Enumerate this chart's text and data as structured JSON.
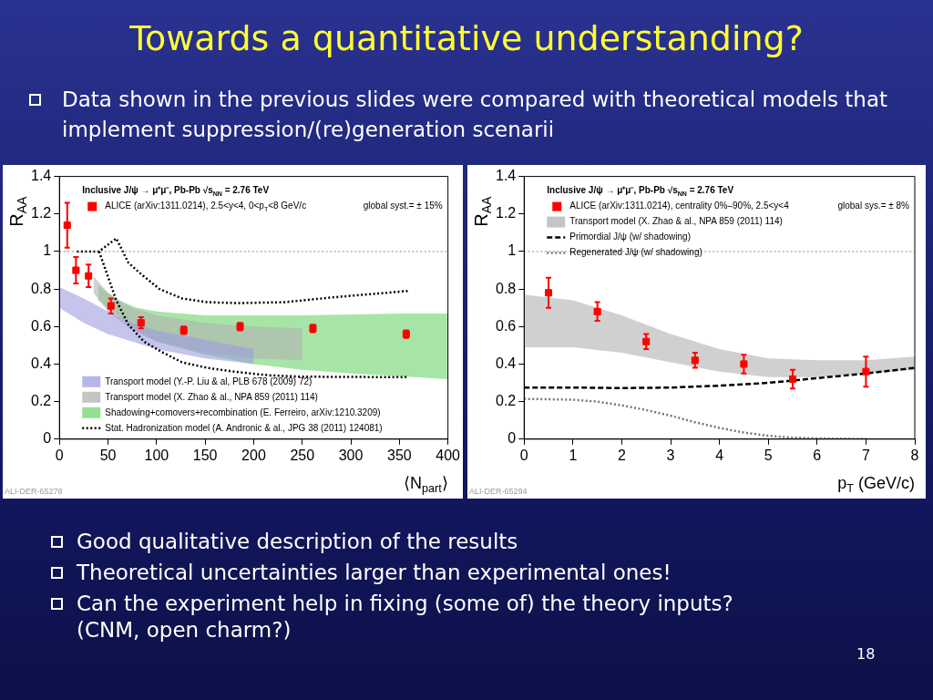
{
  "chart_data": [
    {
      "type": "other",
      "title": "Towards a quantitative understanding?",
      "annotations": [
        "Data shown in the previous slides were compared with theoretical models that implement suppression/(re)generation scenarii"
      ]
    },
    {
      "type": "scatter",
      "xlabel": "⟨N$_{part}$⟩",
      "ylabel": "R$_{AA}$",
      "xlim": [
        0,
        400
      ],
      "ylim": [
        0,
        1.4
      ],
      "xticks": [
        0,
        50,
        100,
        150,
        200,
        250,
        300,
        350,
        400
      ],
      "yticks": [
        0,
        0.2,
        0.4,
        0.6,
        0.8,
        1,
        1.2,
        1.4
      ],
      "legend": "bottom left",
      "annotations": [
        "Inclusive J/ψ → μ⁺μ⁻, Pb-Pb √s$_{NN}$ = 2.76 TeV",
        "global syst.= ± 15%",
        "ALI-DER-65278"
      ],
      "ref_lines": [
        {
          "axis": "y",
          "value": 1,
          "line_style": "dotted",
          "color": "#888888"
        }
      ],
      "series": [
        {
          "type": "line",
          "name": "Transport model (Y.-P. Liu & al, PLB 678 (2009) 72)",
          "color": "#9c9ce0",
          "x": [
            0,
            25,
            50,
            75,
            100,
            150,
            200
          ],
          "values": [
            null,
            null,
            null,
            null,
            null,
            null,
            null
          ],
          "lower": [
            0.7,
            0.62,
            0.56,
            0.52,
            0.48,
            0.43,
            0.4
          ],
          "upper": [
            0.81,
            0.75,
            0.68,
            0.62,
            0.58,
            0.53,
            0.48
          ]
        },
        {
          "type": "line",
          "name": "Transport model (X. Zhao & al., NPA 859 (2011) 114)",
          "color": "#b0b0b0",
          "x": [
            35,
            50,
            75,
            100,
            150,
            200,
            250
          ],
          "values": [
            null,
            null,
            null,
            null,
            null,
            null,
            null
          ],
          "lower": [
            0.78,
            0.68,
            0.58,
            0.52,
            0.46,
            0.43,
            0.42
          ],
          "upper": [
            0.87,
            0.78,
            0.7,
            0.66,
            0.62,
            0.6,
            0.59
          ]
        },
        {
          "type": "line",
          "name": "Shadowing+comovers+recombination (E. Ferreiro, arXiv:1210.3209)",
          "color": "#6cd46c",
          "x": [
            40,
            60,
            80,
            100,
            150,
            200,
            250,
            300,
            350,
            400
          ],
          "values": [
            null,
            null,
            null,
            null,
            null,
            null,
            null,
            null,
            null,
            null
          ],
          "lower": [
            0.74,
            0.66,
            0.58,
            0.52,
            0.45,
            0.4,
            0.37,
            0.35,
            0.335,
            0.32
          ],
          "upper": [
            0.82,
            0.74,
            0.7,
            0.68,
            0.66,
            0.66,
            0.66,
            0.665,
            0.67,
            0.67
          ]
        },
        {
          "type": "line",
          "name": "Stat. Hadronization model (A. Andronic & al., JPG 38 (2011) 124081)",
          "color": "#000000",
          "line_style": "dotted",
          "x": [
            18,
            40.8,
            58.5,
            71,
            84,
            103,
            126,
            152,
            184,
            232,
            280,
            359
          ],
          "values": [
            1,
            1,
            1.07,
            0.94,
            0.88,
            0.8,
            0.75,
            0.73,
            0.725,
            0.73,
            0.755,
            0.79
          ]
        },
        {
          "type": "line",
          "color": "#000000",
          "line_style": "dotted",
          "x": [
            40.8,
            49,
            58.5,
            71,
            87,
            107,
            126,
            152,
            184,
            216,
            248,
            359
          ],
          "values": [
            1,
            0.88,
            0.74,
            0.61,
            0.52,
            0.46,
            0.41,
            0.38,
            0.357,
            0.34,
            0.333,
            0.33
          ]
        },
        {
          "type": "scatter",
          "name": "ALICE (arXiv:1311.0214), 2.5<y<4, 0<p$_{T}$<8 GeV/c",
          "color": "#ff0000",
          "marker": "square",
          "x": [
            8,
            17,
            30,
            53,
            84,
            128,
            186,
            261,
            357
          ],
          "values": [
            1.14,
            0.9,
            0.87,
            0.71,
            0.62,
            0.58,
            0.6,
            0.59,
            0.56
          ],
          "errors": [
            0.12,
            0.07,
            0.06,
            0.04,
            0.03,
            0.02,
            0.02,
            0.02,
            0.02
          ]
        }
      ]
    },
    {
      "type": "scatter",
      "xlabel": "p$_{T}$ (GeV/c)",
      "ylabel": "R$_{AA}$",
      "xlim": [
        0,
        8
      ],
      "ylim": [
        0,
        1.4
      ],
      "xticks": [
        0,
        1,
        2,
        3,
        4,
        5,
        6,
        7,
        8
      ],
      "yticks": [
        0,
        0.2,
        0.4,
        0.6,
        0.8,
        1,
        1.2,
        1.4
      ],
      "legend": "top left",
      "annotations": [
        "Inclusive J/ψ → μ⁺μ⁻, Pb-Pb √s$_{NN}$ = 2.76 TeV",
        "global sys.= ± 8%",
        "ALI-DER-65294"
      ],
      "ref_lines": [
        {
          "axis": "y",
          "value": 1,
          "line_style": "dotted",
          "color": "#888888"
        }
      ],
      "series": [
        {
          "type": "line",
          "name": "Transport model (X. Zhao & al., NPA 859 (2011) 114)",
          "color": "#b0b0b0",
          "x": [
            0,
            1,
            2,
            3,
            4,
            5,
            6,
            7,
            8
          ],
          "values": [
            null,
            null,
            null,
            null,
            null,
            null,
            null,
            null,
            null
          ],
          "lower": [
            0.49,
            0.49,
            0.46,
            0.41,
            0.36,
            0.33,
            0.33,
            0.35,
            0.37
          ],
          "upper": [
            0.77,
            0.74,
            0.66,
            0.56,
            0.48,
            0.43,
            0.42,
            0.42,
            0.44
          ]
        },
        {
          "type": "line",
          "name": "Primordial J/ψ (w/ shadowing)",
          "color": "#000000",
          "line_style": "dashed",
          "x": [
            0,
            1,
            2,
            3,
            4,
            5,
            6,
            7,
            8
          ],
          "values": [
            0.275,
            0.275,
            0.272,
            0.275,
            0.285,
            0.3,
            0.325,
            0.35,
            0.38
          ]
        },
        {
          "type": "line",
          "name": "Regenerated J/ψ (w/ shadowing)",
          "color": "#777777",
          "line_style": "dotted",
          "x": [
            0,
            1,
            1.5,
            2,
            2.5,
            3,
            3.5,
            4,
            4.5,
            5,
            5.5,
            6,
            7
          ],
          "values": [
            0.215,
            0.21,
            0.2,
            0.18,
            0.155,
            0.125,
            0.09,
            0.06,
            0.035,
            0.018,
            0.008,
            0.004,
            0.001
          ]
        },
        {
          "type": "scatter",
          "name": "ALICE (arXiv:1311.0214), centrality 0%–90%, 2.5<y<4",
          "color": "#ff0000",
          "marker": "square",
          "x": [
            0.5,
            1.5,
            2.5,
            3.5,
            4.5,
            5.5,
            7
          ],
          "values": [
            0.78,
            0.68,
            0.52,
            0.42,
            0.4,
            0.32,
            0.36
          ],
          "errors": [
            0.08,
            0.05,
            0.04,
            0.04,
            0.05,
            0.05,
            0.08
          ]
        }
      ]
    },
    {
      "type": "other",
      "annotations": [
        "Good qualitative description of the results",
        "Theoretical uncertainties larger than experimental ones!",
        "Can the experiment help in fixing (some of) the theory inputs? (CNM, open charm?)",
        "18"
      ]
    }
  ]
}
